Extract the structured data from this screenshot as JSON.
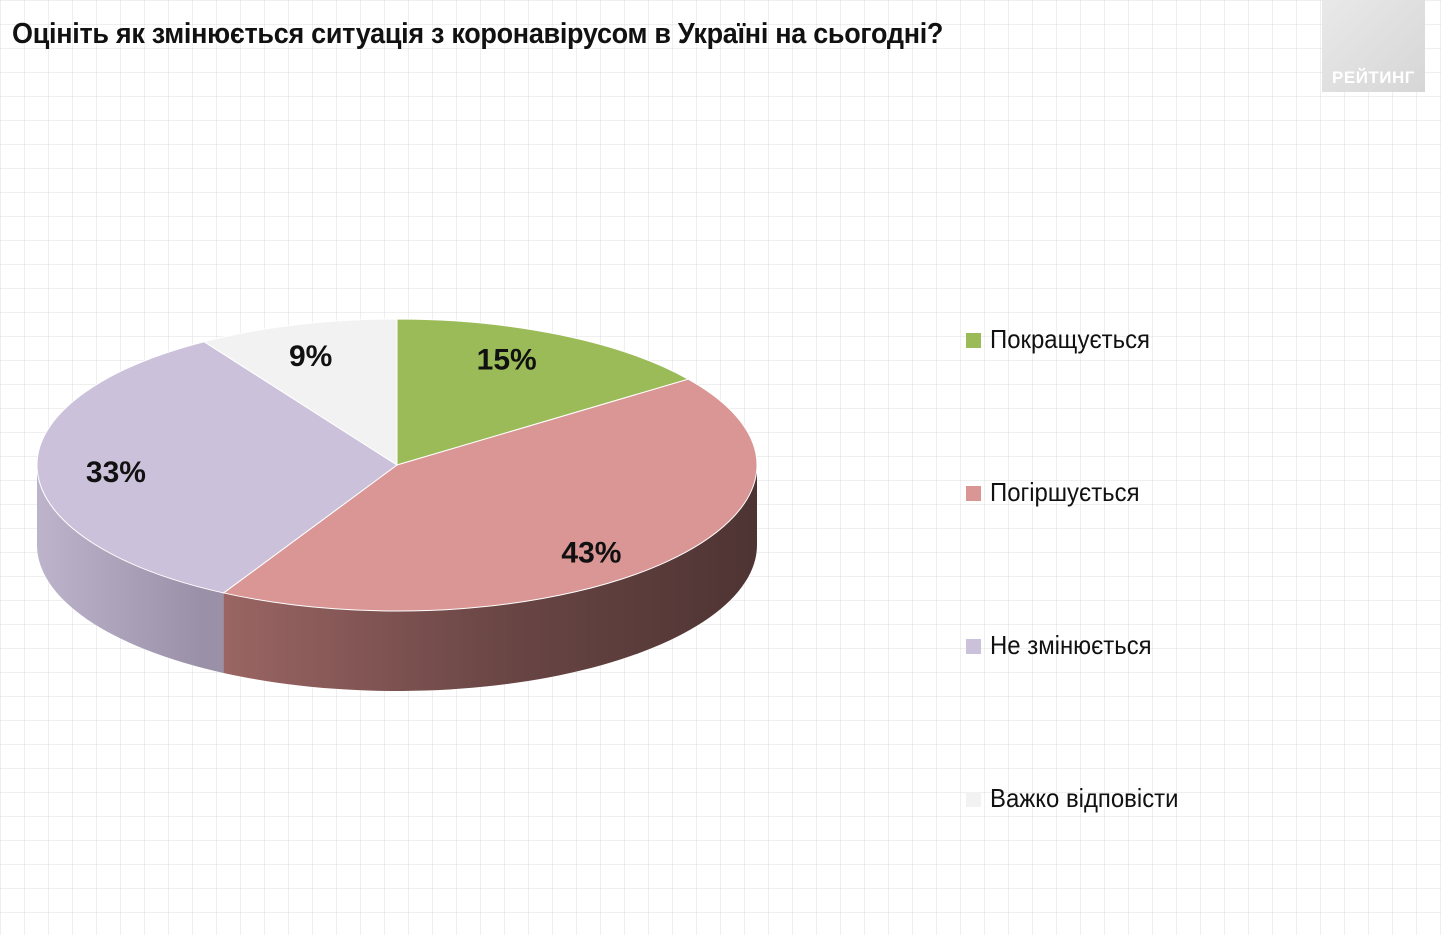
{
  "logo": {
    "text": "РЕЙТИНГ"
  },
  "chart_data": {
    "type": "pie",
    "title": "Оцініть як змінюється ситуація з коронавірусом в Україні на сьогодні?",
    "slices": [
      {
        "label": "Покращується",
        "value": 15,
        "display": "15%",
        "color": "#9bbb59"
      },
      {
        "label": "Погіршується",
        "value": 43,
        "display": "43%",
        "color": "#d99694"
      },
      {
        "label": "Не змінюється",
        "value": 33,
        "display": "33%",
        "color": "#ccc1da"
      },
      {
        "label": "Важко відповісти",
        "value": 9,
        "display": "9%",
        "color": "#f2f2f2"
      }
    ],
    "legend_position": "right",
    "style": "3d"
  }
}
